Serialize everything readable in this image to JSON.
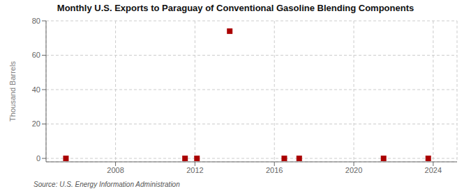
{
  "chart_data": {
    "type": "scatter",
    "title": "Monthly U.S. Exports to Paraguay of Conventional Gasoline Blending Components",
    "ylabel": "Thousand Barrels",
    "annotations": [
      "Source: U.S. Energy Information Administration"
    ],
    "x": [
      2005.5,
      2011.5,
      2012.1,
      2013.75,
      2016.5,
      2017.25,
      2021.5,
      2023.75
    ],
    "values": [
      0,
      0,
      0,
      74,
      0,
      0,
      0,
      0
    ],
    "color": "#aa0000",
    "marker": "square",
    "xlim": [
      2004.5,
      2025.2
    ],
    "xticks": [
      2008,
      2012,
      2016,
      2020,
      2024
    ],
    "ylim": [
      -2,
      80
    ],
    "yticks": [
      0,
      20,
      40,
      60,
      80
    ],
    "grid": true
  }
}
